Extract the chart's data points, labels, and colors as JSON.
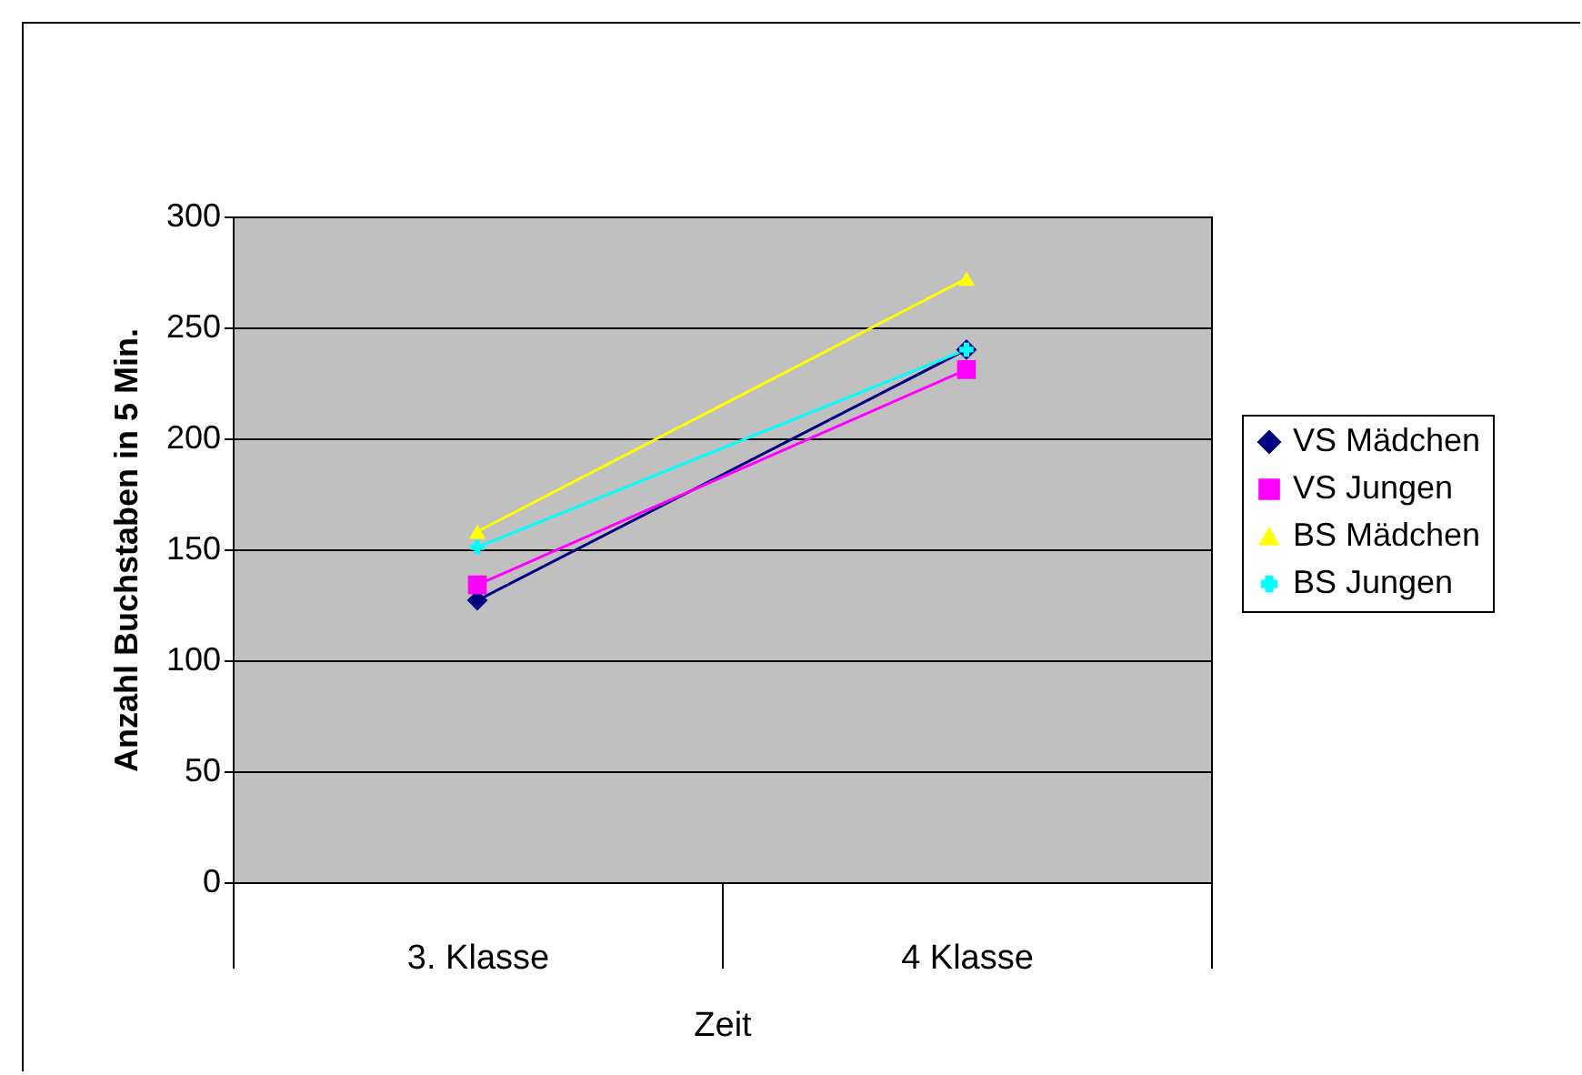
{
  "chart_data": {
    "type": "line",
    "xlabel": "Zeit",
    "ylabel": "Anzahl Buchstaben in 5 Min.",
    "categories": [
      "3. Klasse",
      "4 Klasse"
    ],
    "series": [
      {
        "name": "VS Mädchen",
        "color": "#000080",
        "marker": "diamond",
        "values": [
          127,
          240
        ]
      },
      {
        "name": "VS Jungen",
        "color": "#ff00ff",
        "marker": "square",
        "values": [
          134,
          231
        ]
      },
      {
        "name": "BS Mädchen",
        "color": "#ffff00",
        "marker": "triangle",
        "values": [
          158,
          272
        ]
      },
      {
        "name": "BS Jungen",
        "color": "#00ffff",
        "marker": "cross",
        "values": [
          151,
          240
        ]
      }
    ],
    "ylim": [
      0,
      300
    ],
    "yticks": [
      0,
      50,
      100,
      150,
      200,
      250,
      300
    ],
    "grid": "y",
    "legend": "right"
  }
}
